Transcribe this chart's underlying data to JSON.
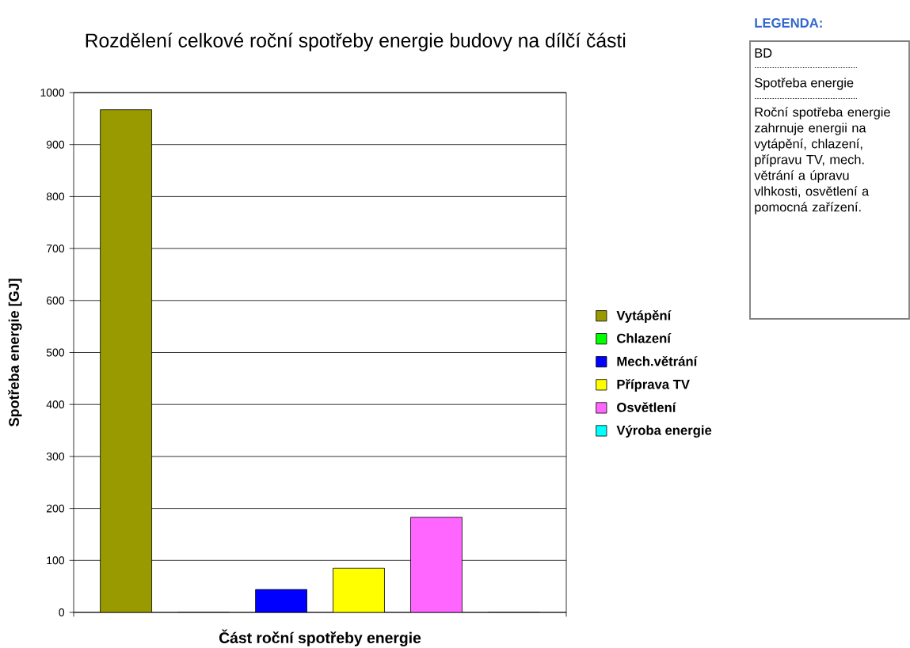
{
  "chart_data": {
    "type": "bar",
    "title": "Rozdělení celkové roční spotřeby energie budovy na dílčí části",
    "xlabel": "Část roční spotřeby energie",
    "ylabel": "Spotřeba energie [GJ]",
    "categories": [
      null
    ],
    "series": [
      {
        "name": "Vytápění",
        "color": "#999900",
        "values": [
          967
        ]
      },
      {
        "name": "Chlazení",
        "color": "#00ff00",
        "values": [
          0
        ]
      },
      {
        "name": "Mech.větrání",
        "color": "#0000ff",
        "values": [
          44
        ]
      },
      {
        "name": "Příprava TV",
        "color": "#ffff00",
        "values": [
          85
        ]
      },
      {
        "name": "Osvětlení",
        "color": "#ff66ff",
        "values": [
          183
        ]
      },
      {
        "name": "Výroba energie",
        "color": "#00ffff",
        "values": [
          0
        ]
      }
    ],
    "ylim": [
      0,
      1000
    ],
    "yticks": [
      0,
      100,
      200,
      300,
      400,
      500,
      600,
      700,
      800,
      900,
      1000
    ],
    "grid": "y",
    "legend": "right",
    "annotations": [
      "LEGENDA:",
      "BD",
      "Spotřeba energie",
      "Roční spotřeba energie zahrnuje energii na vytápění, chlazení, přípravu TV, mech. větrání a úpravu vlhkosti, osvětlení a pomocná zařízení."
    ]
  }
}
